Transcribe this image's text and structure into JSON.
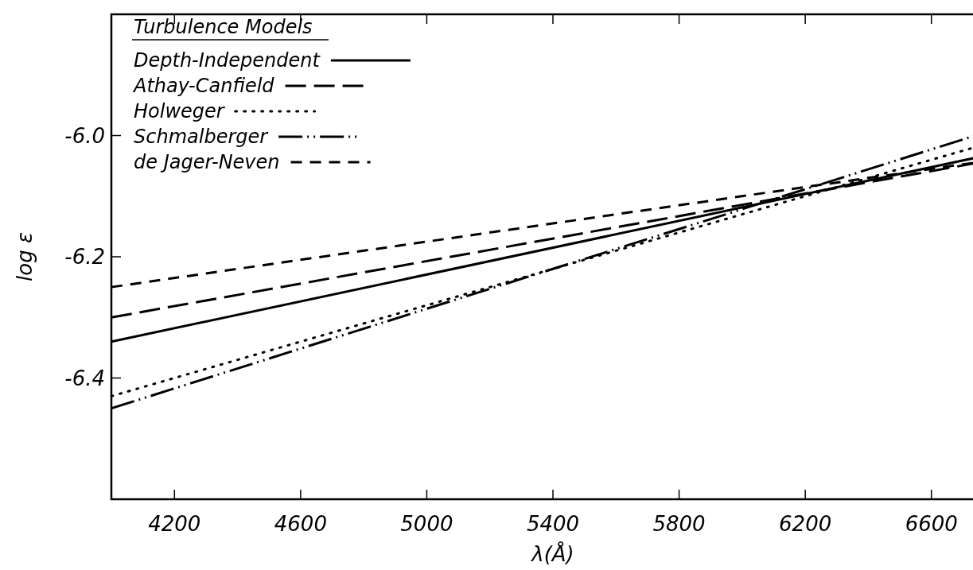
{
  "chart_data": {
    "type": "line",
    "xlabel": "λ(Å)",
    "ylabel": "log ε",
    "legend_title": "Turbulence Models",
    "legend": "top left",
    "grid": false,
    "marker": "none",
    "xlim": [
      4000,
      6800
    ],
    "xticks": [
      4200,
      4600,
      5000,
      5400,
      5800,
      6200,
      6600
    ],
    "ylim": [
      -6.6,
      -5.8
    ],
    "yticks": [
      {
        "value": -6.0,
        "label": "-6.0"
      },
      -6.2,
      -6.4
    ],
    "x": [
      4000,
      6800
    ],
    "series": [
      {
        "name": "Depth-Independent",
        "color": "#000000",
        "line_style": "solid",
        "values": [
          -6.34,
          -6.03
        ]
      },
      {
        "name": "Athay-Canfield",
        "color": "#000000",
        "line_style": "longdash",
        "values": [
          -6.3,
          -6.04
        ]
      },
      {
        "name": "Holweger",
        "color": "#000000",
        "line_style": "dotted",
        "values": [
          -6.43,
          -6.01
        ]
      },
      {
        "name": "Schmalberger",
        "color": "#000000",
        "line_style": "dashdotdot",
        "values": [
          -6.45,
          -5.99
        ]
      },
      {
        "name": "de Jager-Neven",
        "color": "#000000",
        "line_style": "dashed",
        "values": [
          -6.25,
          -6.04
        ]
      }
    ]
  }
}
